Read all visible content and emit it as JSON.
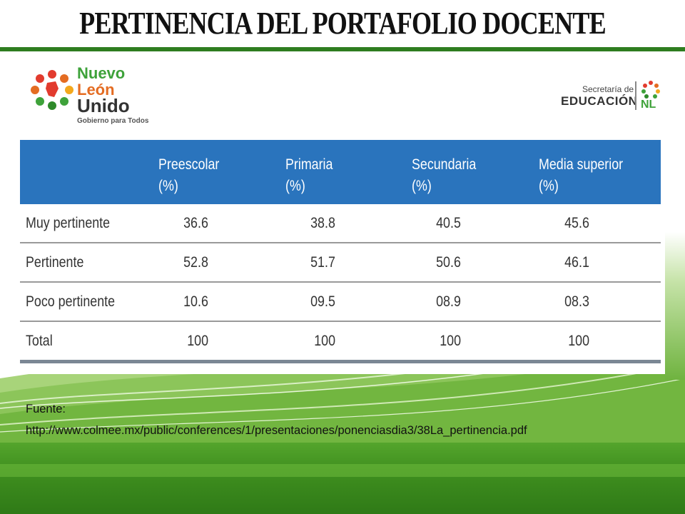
{
  "title": "PERTINENCIA DEL PORTAFOLIO DOCENTE",
  "logo_left": {
    "line1": "Nuevo",
    "line2": "León",
    "line3": "Unido",
    "tagline": "Gobierno para Todos"
  },
  "logo_right": {
    "line1": "Secretaría de",
    "line2": "EDUCACIÓN",
    "suffix": "NL"
  },
  "colors": {
    "header_blue": "#2a74bd",
    "green": "#3f8f1f"
  },
  "table": {
    "headers": [
      {
        "line1": "",
        "line2": ""
      },
      {
        "line1": "Preescolar",
        "line2": "(%)"
      },
      {
        "line1": "Primaria",
        "line2": "(%)"
      },
      {
        "line1": "Secundaria",
        "line2": "(%)"
      },
      {
        "line1": "Media superior",
        "line2": "(%)"
      }
    ],
    "rows": [
      {
        "label": "Muy pertinente",
        "values": [
          "36.6",
          "38.8",
          "40.5",
          "45.6"
        ]
      },
      {
        "label": "Pertinente",
        "values": [
          "52.8",
          "51.7",
          "50.6",
          "46.1"
        ]
      },
      {
        "label": "Poco pertinente",
        "values": [
          "10.6",
          "09.5",
          "08.9",
          "08.3"
        ]
      },
      {
        "label": "Total",
        "values": [
          "100",
          "100",
          "100",
          "100"
        ]
      }
    ]
  },
  "source": {
    "label": "Fuente:",
    "url": "http://www.colmee.mx/public/conferences/1/presentaciones/ponenciasdia3/38La_pertinencia.pdf"
  }
}
